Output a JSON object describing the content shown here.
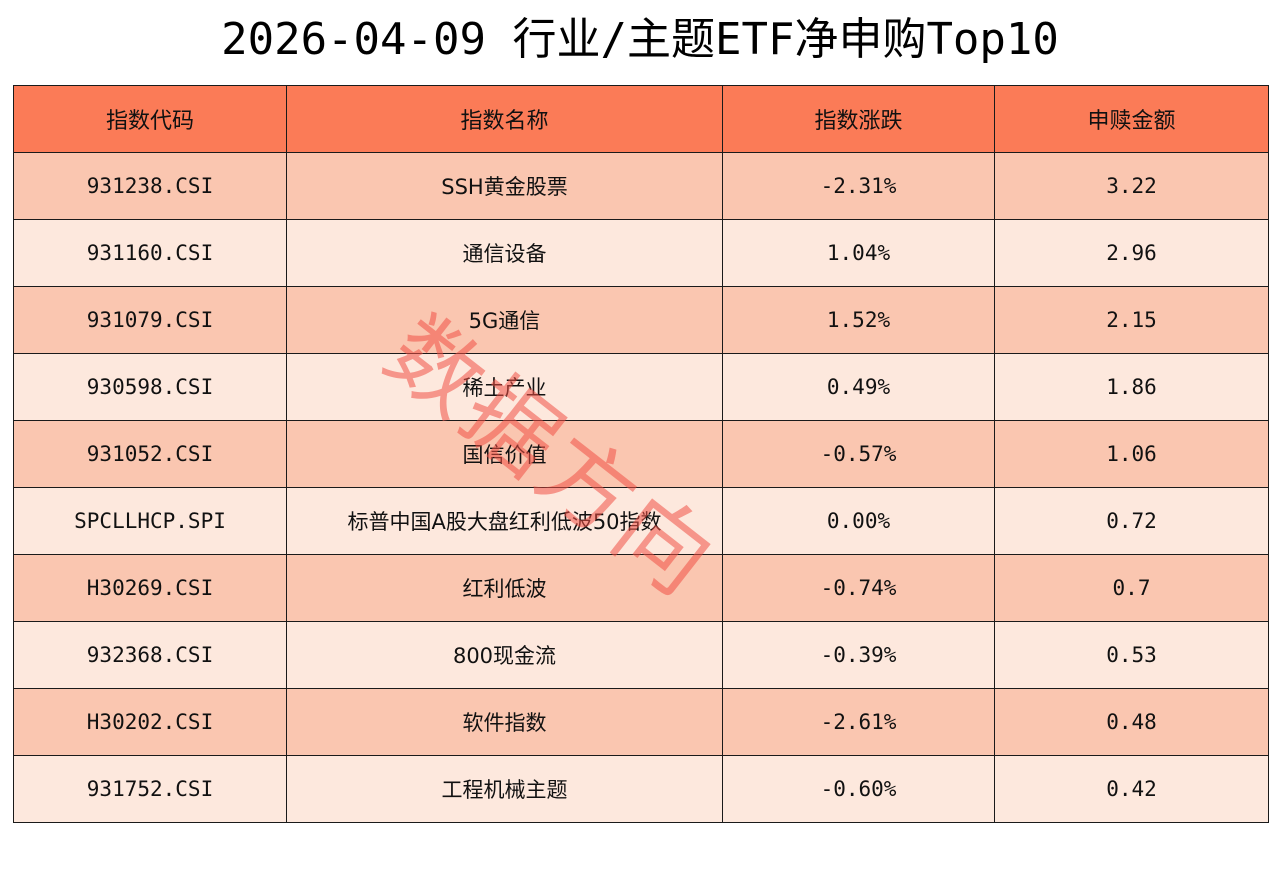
{
  "title": "2026-04-09 行业/主题ETF净申购Top10",
  "watermark": "数据方向",
  "colors": {
    "header_bg": "#fb7b57",
    "row_dark": "#fac6b0",
    "row_light": "#fde8dd",
    "border": "#1a1a1a",
    "watermark": "#f05046"
  },
  "chart_data": {
    "type": "table",
    "title": "2026-04-09 行业/主题ETF净申购Top10",
    "columns": [
      "指数代码",
      "指数名称",
      "指数涨跌",
      "申赎金额"
    ],
    "rows": [
      [
        "931238.CSI",
        "SSH黄金股票",
        "-2.31%",
        "3.22"
      ],
      [
        "931160.CSI",
        "通信设备",
        "1.04%",
        "2.96"
      ],
      [
        "931079.CSI",
        "5G通信",
        "1.52%",
        "2.15"
      ],
      [
        "930598.CSI",
        "稀土产业",
        "0.49%",
        "1.86"
      ],
      [
        "931052.CSI",
        "国信价值",
        "-0.57%",
        "1.06"
      ],
      [
        "SPCLLHCP.SPI",
        "标普中国A股大盘红利低波50指数",
        "0.00%",
        "0.72"
      ],
      [
        "H30269.CSI",
        "红利低波",
        "-0.74%",
        "0.7"
      ],
      [
        "932368.CSI",
        "800现金流",
        "-0.39%",
        "0.53"
      ],
      [
        "H30202.CSI",
        "软件指数",
        "-2.61%",
        "0.48"
      ],
      [
        "931752.CSI",
        "工程机械主题",
        "-0.60%",
        "0.42"
      ]
    ]
  }
}
